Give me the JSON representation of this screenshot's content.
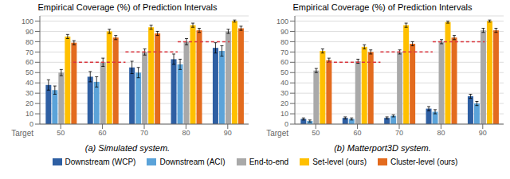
{
  "chart_data": [
    {
      "type": "bar",
      "title": "Empirical Coverage (%) of Prediction Intervals",
      "subtitle": "(a) Simulated system.",
      "xlabel": "Target",
      "categories": [
        "50",
        "60",
        "70",
        "80",
        "90"
      ],
      "series": [
        {
          "name": "Downstream (WCP)",
          "color": "#2E5FA3",
          "values": [
            38,
            46,
            55,
            63,
            74
          ],
          "errors": [
            5,
            5,
            6,
            5,
            5
          ]
        },
        {
          "name": "Downstream (ACI)",
          "color": "#5BA3D9",
          "values": [
            33,
            41,
            50,
            58,
            71
          ],
          "errors": [
            4,
            5,
            5,
            5,
            5
          ]
        },
        {
          "name": "End-to-end",
          "color": "#A9A9A9",
          "values": [
            50,
            60,
            70,
            80,
            90
          ],
          "errors": [
            3,
            4,
            3,
            3,
            2
          ]
        },
        {
          "name": "Set-level (ours)",
          "color": "#FFC000",
          "values": [
            85,
            90,
            94,
            96,
            100
          ],
          "errors": [
            2,
            2,
            2,
            2,
            1
          ]
        },
        {
          "name": "Cluster-level (ours)",
          "color": "#E36B1E",
          "values": [
            79,
            84,
            88,
            91,
            93
          ],
          "errors": [
            2,
            2,
            2,
            2,
            2
          ]
        }
      ],
      "target_lines": {
        "values": [
          50,
          60,
          70,
          80,
          90
        ],
        "color": "#D9363E",
        "line_style": "dashed"
      },
      "ylim": [
        0,
        105
      ],
      "yticks": [
        0,
        10,
        20,
        30,
        40,
        50,
        60,
        70,
        80,
        90,
        100
      ],
      "grid": true,
      "legend": "bottom"
    },
    {
      "type": "bar",
      "title": "Empirical Coverage (%) of Prediction Intervals",
      "subtitle": "(b) Matterport3D system.",
      "xlabel": "Target",
      "categories": [
        "50",
        "60",
        "70",
        "80",
        "90"
      ],
      "series": [
        {
          "name": "Downstream (WCP)",
          "color": "#2E5FA3",
          "values": [
            5,
            6,
            6,
            15,
            27
          ],
          "errors": [
            1,
            1,
            1,
            2,
            2
          ]
        },
        {
          "name": "Downstream (ACI)",
          "color": "#5BA3D9",
          "values": [
            3,
            5,
            8,
            12,
            20
          ],
          "errors": [
            1,
            1,
            1,
            2,
            2
          ]
        },
        {
          "name": "End-to-end",
          "color": "#A9A9A9",
          "values": [
            52,
            61,
            70,
            80,
            91
          ],
          "errors": [
            2,
            2,
            2,
            2,
            2
          ]
        },
        {
          "name": "Set-level (ours)",
          "color": "#FFC000",
          "values": [
            71,
            75,
            96,
            99,
            100
          ],
          "errors": [
            2,
            2,
            2,
            1,
            1
          ]
        },
        {
          "name": "Cluster-level (ours)",
          "color": "#E36B1E",
          "values": [
            62,
            70,
            78,
            84,
            91
          ],
          "errors": [
            2,
            2,
            2,
            2,
            2
          ]
        }
      ],
      "target_lines": {
        "values": [
          50,
          60,
          70,
          80,
          90
        ],
        "color": "#D9363E",
        "line_style": "dashed"
      },
      "ylim": [
        0,
        105
      ],
      "yticks": [
        0,
        10,
        20,
        30,
        40,
        50,
        60,
        70,
        80,
        90,
        100
      ],
      "grid": true
    }
  ]
}
